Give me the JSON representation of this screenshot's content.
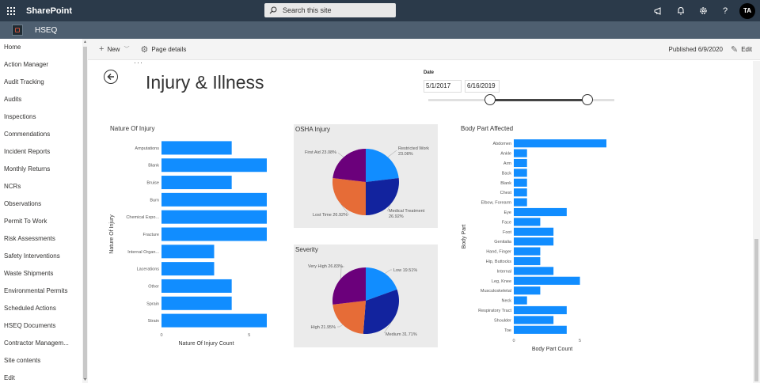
{
  "suite": {
    "brand": "SharePoint",
    "search_placeholder": "Search this site",
    "avatar_initials": "TA",
    "help_glyph": "?"
  },
  "site": {
    "name": "HSEQ"
  },
  "nav": [
    "Home",
    "Action Manager",
    "Audit Tracking",
    "Audits",
    "Inspections",
    "Commendations",
    "Incident Reports",
    "Monthly Returns",
    "NCRs",
    "Observations",
    "Permit To Work",
    "Risk Assessments",
    "Safety Interventions",
    "Waste Shipments",
    "Environmental Permits",
    "Scheduled Actions",
    "HSEQ Documents",
    "Contractor Managem...",
    "Site contents",
    "Edit"
  ],
  "command": {
    "new_label": "New",
    "page_details": "Page details",
    "published": "Published 6/9/2020",
    "edit": "Edit"
  },
  "page": {
    "title": "Injury & Illness"
  },
  "date_filter": {
    "label": "Date",
    "start": "5/1/2017",
    "end": "6/16/2019"
  },
  "colors": {
    "bar": "#118dff",
    "pie_blue": "#118dff",
    "pie_navy": "#12239e",
    "pie_orange": "#e66c37",
    "pie_purple": "#6b007b"
  },
  "chart_data": [
    {
      "type": "bar",
      "title": "Nature Of Injury",
      "ylabel": "Nature Of Injury",
      "xlabel": "Nature Of Injury Count",
      "xlim": [
        0,
        6
      ],
      "x_ticks": [
        "0",
        "5"
      ],
      "categories": [
        "Amputations",
        "Blank",
        "Bruise",
        "Burn",
        "Chemical Expo...",
        "Fracture",
        "Internal Organ...",
        "Lacerations",
        "Other",
        "Sprain",
        "Strain"
      ],
      "values": [
        4,
        6,
        4,
        6,
        6,
        6,
        3,
        3,
        4,
        4,
        6
      ]
    },
    {
      "type": "pie",
      "title": "OSHA Injury",
      "slices": [
        {
          "label": "Restricted Work",
          "value": 23.08,
          "text": "23.08%"
        },
        {
          "label": "Medical Treatment",
          "value": 26.92,
          "text": "26.92%"
        },
        {
          "label": "Lost Time",
          "value": 26.92,
          "text": "26.92%"
        },
        {
          "label": "First Aid",
          "value": 23.08,
          "text": "23.08%"
        }
      ]
    },
    {
      "type": "pie",
      "title": "Severity",
      "slices": [
        {
          "label": "Low",
          "value": 19.51,
          "text": "19.51%"
        },
        {
          "label": "Medium",
          "value": 31.71,
          "text": "31.71%"
        },
        {
          "label": "High",
          "value": 21.95,
          "text": "21.95%"
        },
        {
          "label": "Very High",
          "value": 26.83,
          "text": "26.83%"
        }
      ]
    },
    {
      "type": "bar",
      "title": "Body Part Affected",
      "ylabel": "Body Part",
      "xlabel": "Body Part Count",
      "xlim": [
        0,
        7
      ],
      "x_ticks": [
        "0",
        "5"
      ],
      "categories": [
        "Abdomen",
        "Ankle",
        "Arm",
        "Back",
        "Blank",
        "Chest",
        "Elbow, Forearm",
        "Eye",
        "Face",
        "Foot",
        "Genitalia",
        "Hand, Finger",
        "Hip, Buttocks",
        "Internal",
        "Leg, Knee",
        "Musculoskeletal",
        "Neck",
        "Respiratory Tract",
        "Shoulder",
        "Toe"
      ],
      "values": [
        7,
        1,
        1,
        1,
        1,
        1,
        1,
        4,
        2,
        3,
        3,
        2,
        2,
        3,
        5,
        2,
        1,
        4,
        3,
        4
      ]
    }
  ]
}
